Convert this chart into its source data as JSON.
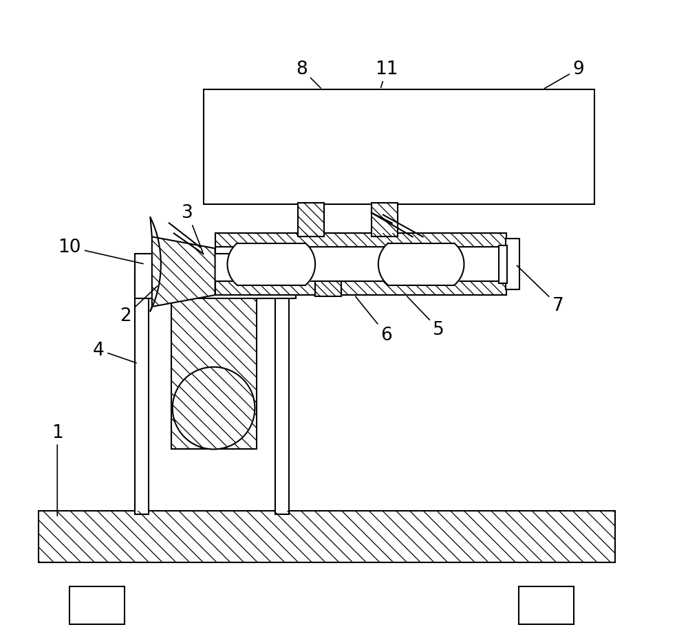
{
  "background_color": "#ffffff",
  "line_color": "#000000",
  "figsize": [
    10.0,
    9.29
  ],
  "dpi": 100
}
